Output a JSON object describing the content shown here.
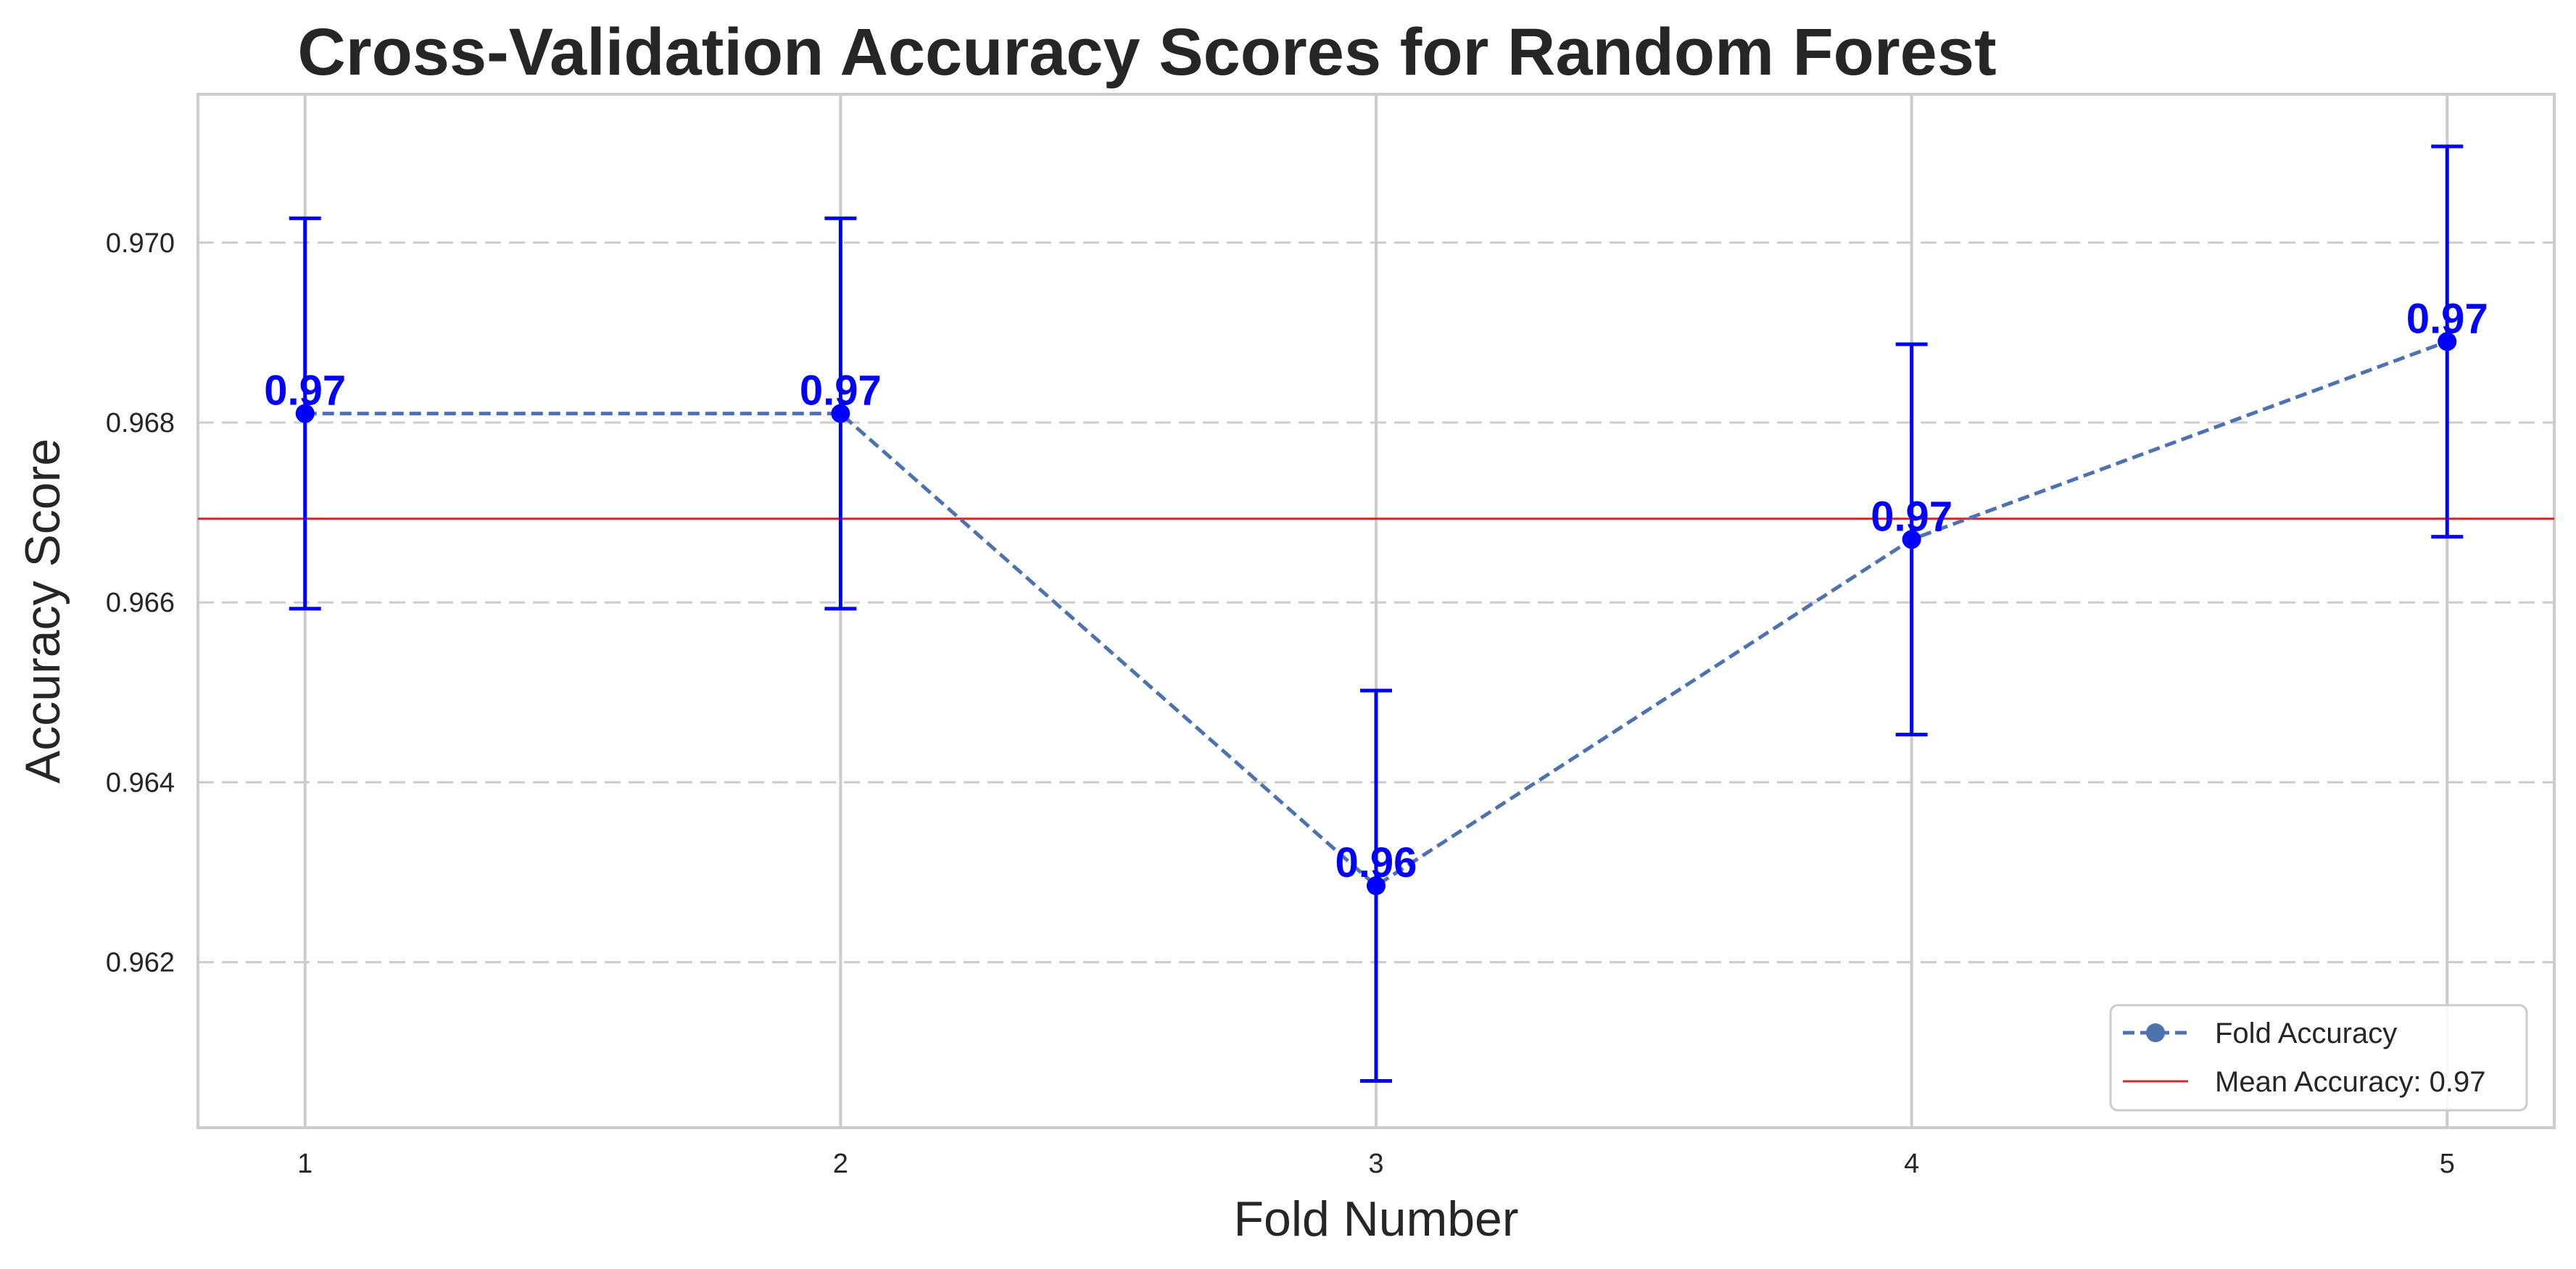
{
  "chart_data": {
    "type": "line",
    "title": "Cross-Validation Accuracy Scores for Random Forest",
    "xlabel": "Fold Number",
    "ylabel": "Accuracy Score",
    "x": [
      1,
      2,
      3,
      4,
      5
    ],
    "xlim": [
      0.8,
      5.2
    ],
    "ylim": [
      0.96016,
      0.97165
    ],
    "yticks": [
      0.962,
      0.964,
      0.966,
      0.968,
      0.97
    ],
    "ytick_labels": [
      "0.962",
      "0.964",
      "0.966",
      "0.968",
      "0.970"
    ],
    "xtick_labels": [
      "1",
      "2",
      "3",
      "4",
      "5"
    ],
    "grid": true,
    "legend_position": "bottom-right",
    "series": [
      {
        "name": "Fold Accuracy",
        "values": [
          0.9681,
          0.9681,
          0.96285,
          0.9667,
          0.9689
        ],
        "error": [
          0.00217,
          0.00217,
          0.00217,
          0.00217,
          0.00217
        ],
        "point_labels": [
          "0.97",
          "0.97",
          "0.96",
          "0.97",
          "0.97"
        ],
        "line_color": "#4c72b0",
        "marker_color": "#0000ff",
        "errorbar_color": "#0000ff"
      }
    ],
    "mean_line": {
      "name": "Mean Accuracy: 0.97",
      "value": 0.96693,
      "color": "#d62728"
    }
  }
}
